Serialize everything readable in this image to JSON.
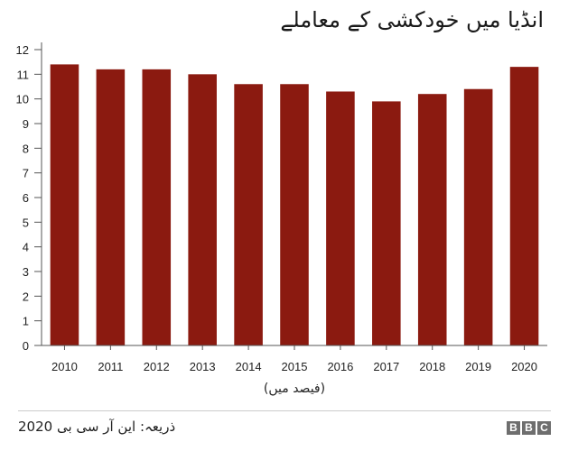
{
  "chart_data": {
    "type": "bar",
    "title": "انڈیا میں خودکشی کے معاملے",
    "unit_label": "(فیصد میں)",
    "categories": [
      "2010",
      "2011",
      "2012",
      "2013",
      "2014",
      "2015",
      "2016",
      "2017",
      "2018",
      "2019",
      "2020"
    ],
    "values": [
      11.4,
      11.2,
      11.2,
      11.0,
      10.6,
      10.6,
      10.3,
      9.9,
      10.2,
      10.4,
      11.3
    ],
    "yticks": [
      "0",
      "1",
      "2",
      "3",
      "4",
      "5",
      "6",
      "7",
      "8",
      "9",
      "10",
      "11",
      "12"
    ],
    "ylim": [
      0,
      12
    ],
    "grid": false,
    "bar_color": "#8b1a10"
  },
  "source": "ذریعہ: این آر سی بی 2020",
  "brand": [
    "B",
    "B",
    "C"
  ]
}
